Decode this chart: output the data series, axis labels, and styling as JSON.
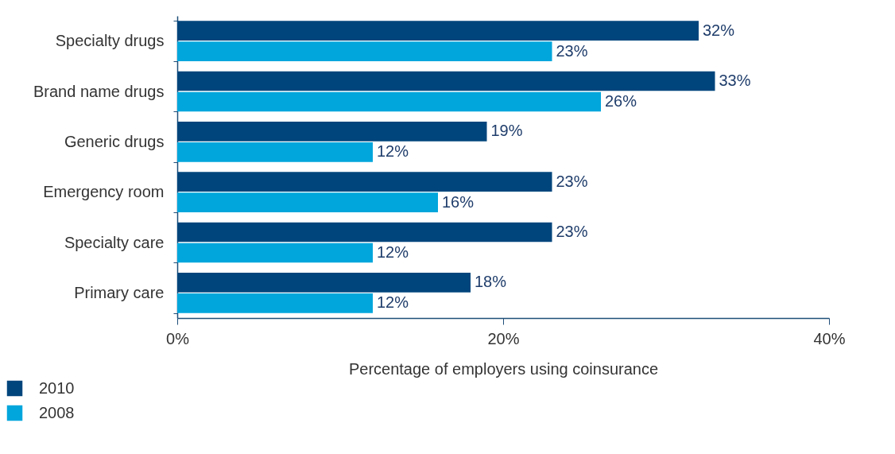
{
  "chart_data": {
    "type": "bar",
    "orientation": "horizontal",
    "xlabel": "Percentage of employers using coinsurance",
    "categories": [
      "Specialty drugs",
      "Brand name drugs",
      "Generic drugs",
      "Emergency room",
      "Specialty care",
      "Primary care"
    ],
    "series": [
      {
        "name": "2010",
        "color": "#00457c",
        "values": [
          32,
          33,
          19,
          23,
          23,
          18
        ],
        "value_labels": [
          "32%",
          "33%",
          "19%",
          "23%",
          "23%",
          "18%"
        ]
      },
      {
        "name": "2008",
        "color": "#00a6dc",
        "values": [
          23,
          26,
          12,
          16,
          12,
          12
        ],
        "value_labels": [
          "23%",
          "26%",
          "12%",
          "16%",
          "12%",
          "12%"
        ]
      }
    ],
    "xlim": [
      0,
      40
    ],
    "xticks": [
      {
        "value": 0,
        "label": "0%"
      },
      {
        "value": 20,
        "label": "20%"
      },
      {
        "value": 40,
        "label": "40%"
      }
    ],
    "grid": false,
    "legend": "bottom left"
  }
}
